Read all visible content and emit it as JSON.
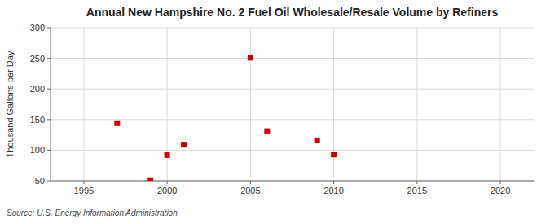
{
  "chart_data": {
    "type": "scatter",
    "title": "Annual New Hampshire No. 2 Fuel Oil Wholesale/Resale Volume by Refiners",
    "ylabel": "Thousand Gallons per Day",
    "source": "Source: U.S. Energy Information Administration",
    "x": [
      1997,
      1999,
      2000,
      2001,
      2005,
      2006,
      2009,
      2010
    ],
    "values": [
      144,
      51,
      92,
      109,
      251,
      131,
      116,
      93
    ],
    "color": "#cc0000",
    "marker": "square",
    "xlim": [
      1993,
      2022
    ],
    "ylim": [
      50,
      300
    ],
    "xticks": [
      1995,
      2000,
      2005,
      2010,
      2015,
      2020
    ],
    "yticks": [
      50,
      100,
      150,
      200,
      250,
      300
    ],
    "grid": true
  }
}
